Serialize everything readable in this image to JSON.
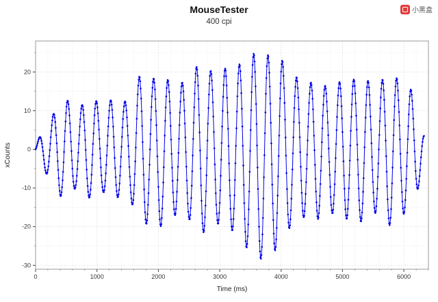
{
  "watermark": {
    "text": "小黑盒",
    "color": "#e23b3b"
  },
  "chart_data": {
    "type": "line",
    "title": "MouseTester",
    "subtitle": "400 cpi",
    "xlabel": "Time (ms)",
    "ylabel": "xCounts",
    "xlim": [
      0,
      6400
    ],
    "ylim": [
      -31,
      28
    ],
    "x_ticks": [
      0,
      1000,
      2000,
      3000,
      4000,
      5000,
      6000
    ],
    "y_ticks": [
      -30,
      -20,
      -10,
      0,
      10,
      20
    ],
    "x_minor_step": 200,
    "y_minor_step": 5,
    "grid": true,
    "legend": "none",
    "series_color": "#0000e6",
    "series_name": "xCounts",
    "signal": {
      "description": "Mouse xCounts sampled vs time; oscillating side-to-side swipes with varying amplitude",
      "sample_interval_ms": 8,
      "period_ms": 233,
      "t_start": 0,
      "t_end": 6330,
      "amplitude_envelope": [
        [
          0,
          1
        ],
        [
          120,
          5
        ],
        [
          250,
          8
        ],
        [
          400,
          12
        ],
        [
          500,
          13
        ],
        [
          650,
          10
        ],
        [
          800,
          12
        ],
        [
          950,
          13
        ],
        [
          1100,
          11
        ],
        [
          1250,
          13
        ],
        [
          1400,
          12
        ],
        [
          1550,
          13
        ],
        [
          1650,
          18
        ],
        [
          1750,
          20
        ],
        [
          1900,
          18
        ],
        [
          2050,
          20
        ],
        [
          2200,
          17
        ],
        [
          2350,
          17
        ],
        [
          2500,
          18
        ],
        [
          2650,
          22
        ],
        [
          2800,
          21
        ],
        [
          2950,
          19
        ],
        [
          3100,
          21
        ],
        [
          3250,
          21
        ],
        [
          3400,
          24
        ],
        [
          3550,
          26
        ],
        [
          3700,
          27
        ],
        [
          3850,
          25
        ],
        [
          4000,
          24
        ],
        [
          4150,
          20
        ],
        [
          4300,
          18
        ],
        [
          4450,
          17
        ],
        [
          4600,
          18
        ],
        [
          4750,
          16
        ],
        [
          4900,
          17
        ],
        [
          5050,
          18
        ],
        [
          5200,
          18
        ],
        [
          5350,
          19
        ],
        [
          5500,
          16
        ],
        [
          5650,
          18
        ],
        [
          5800,
          20
        ],
        [
          5950,
          17
        ],
        [
          6100,
          16
        ],
        [
          6200,
          12
        ],
        [
          6330,
          4
        ]
      ],
      "offset_envelope": [
        [
          0,
          0
        ],
        [
          3200,
          0
        ],
        [
          3600,
          -1.5
        ],
        [
          3900,
          -1.5
        ],
        [
          4100,
          0
        ],
        [
          6330,
          0
        ]
      ]
    }
  }
}
